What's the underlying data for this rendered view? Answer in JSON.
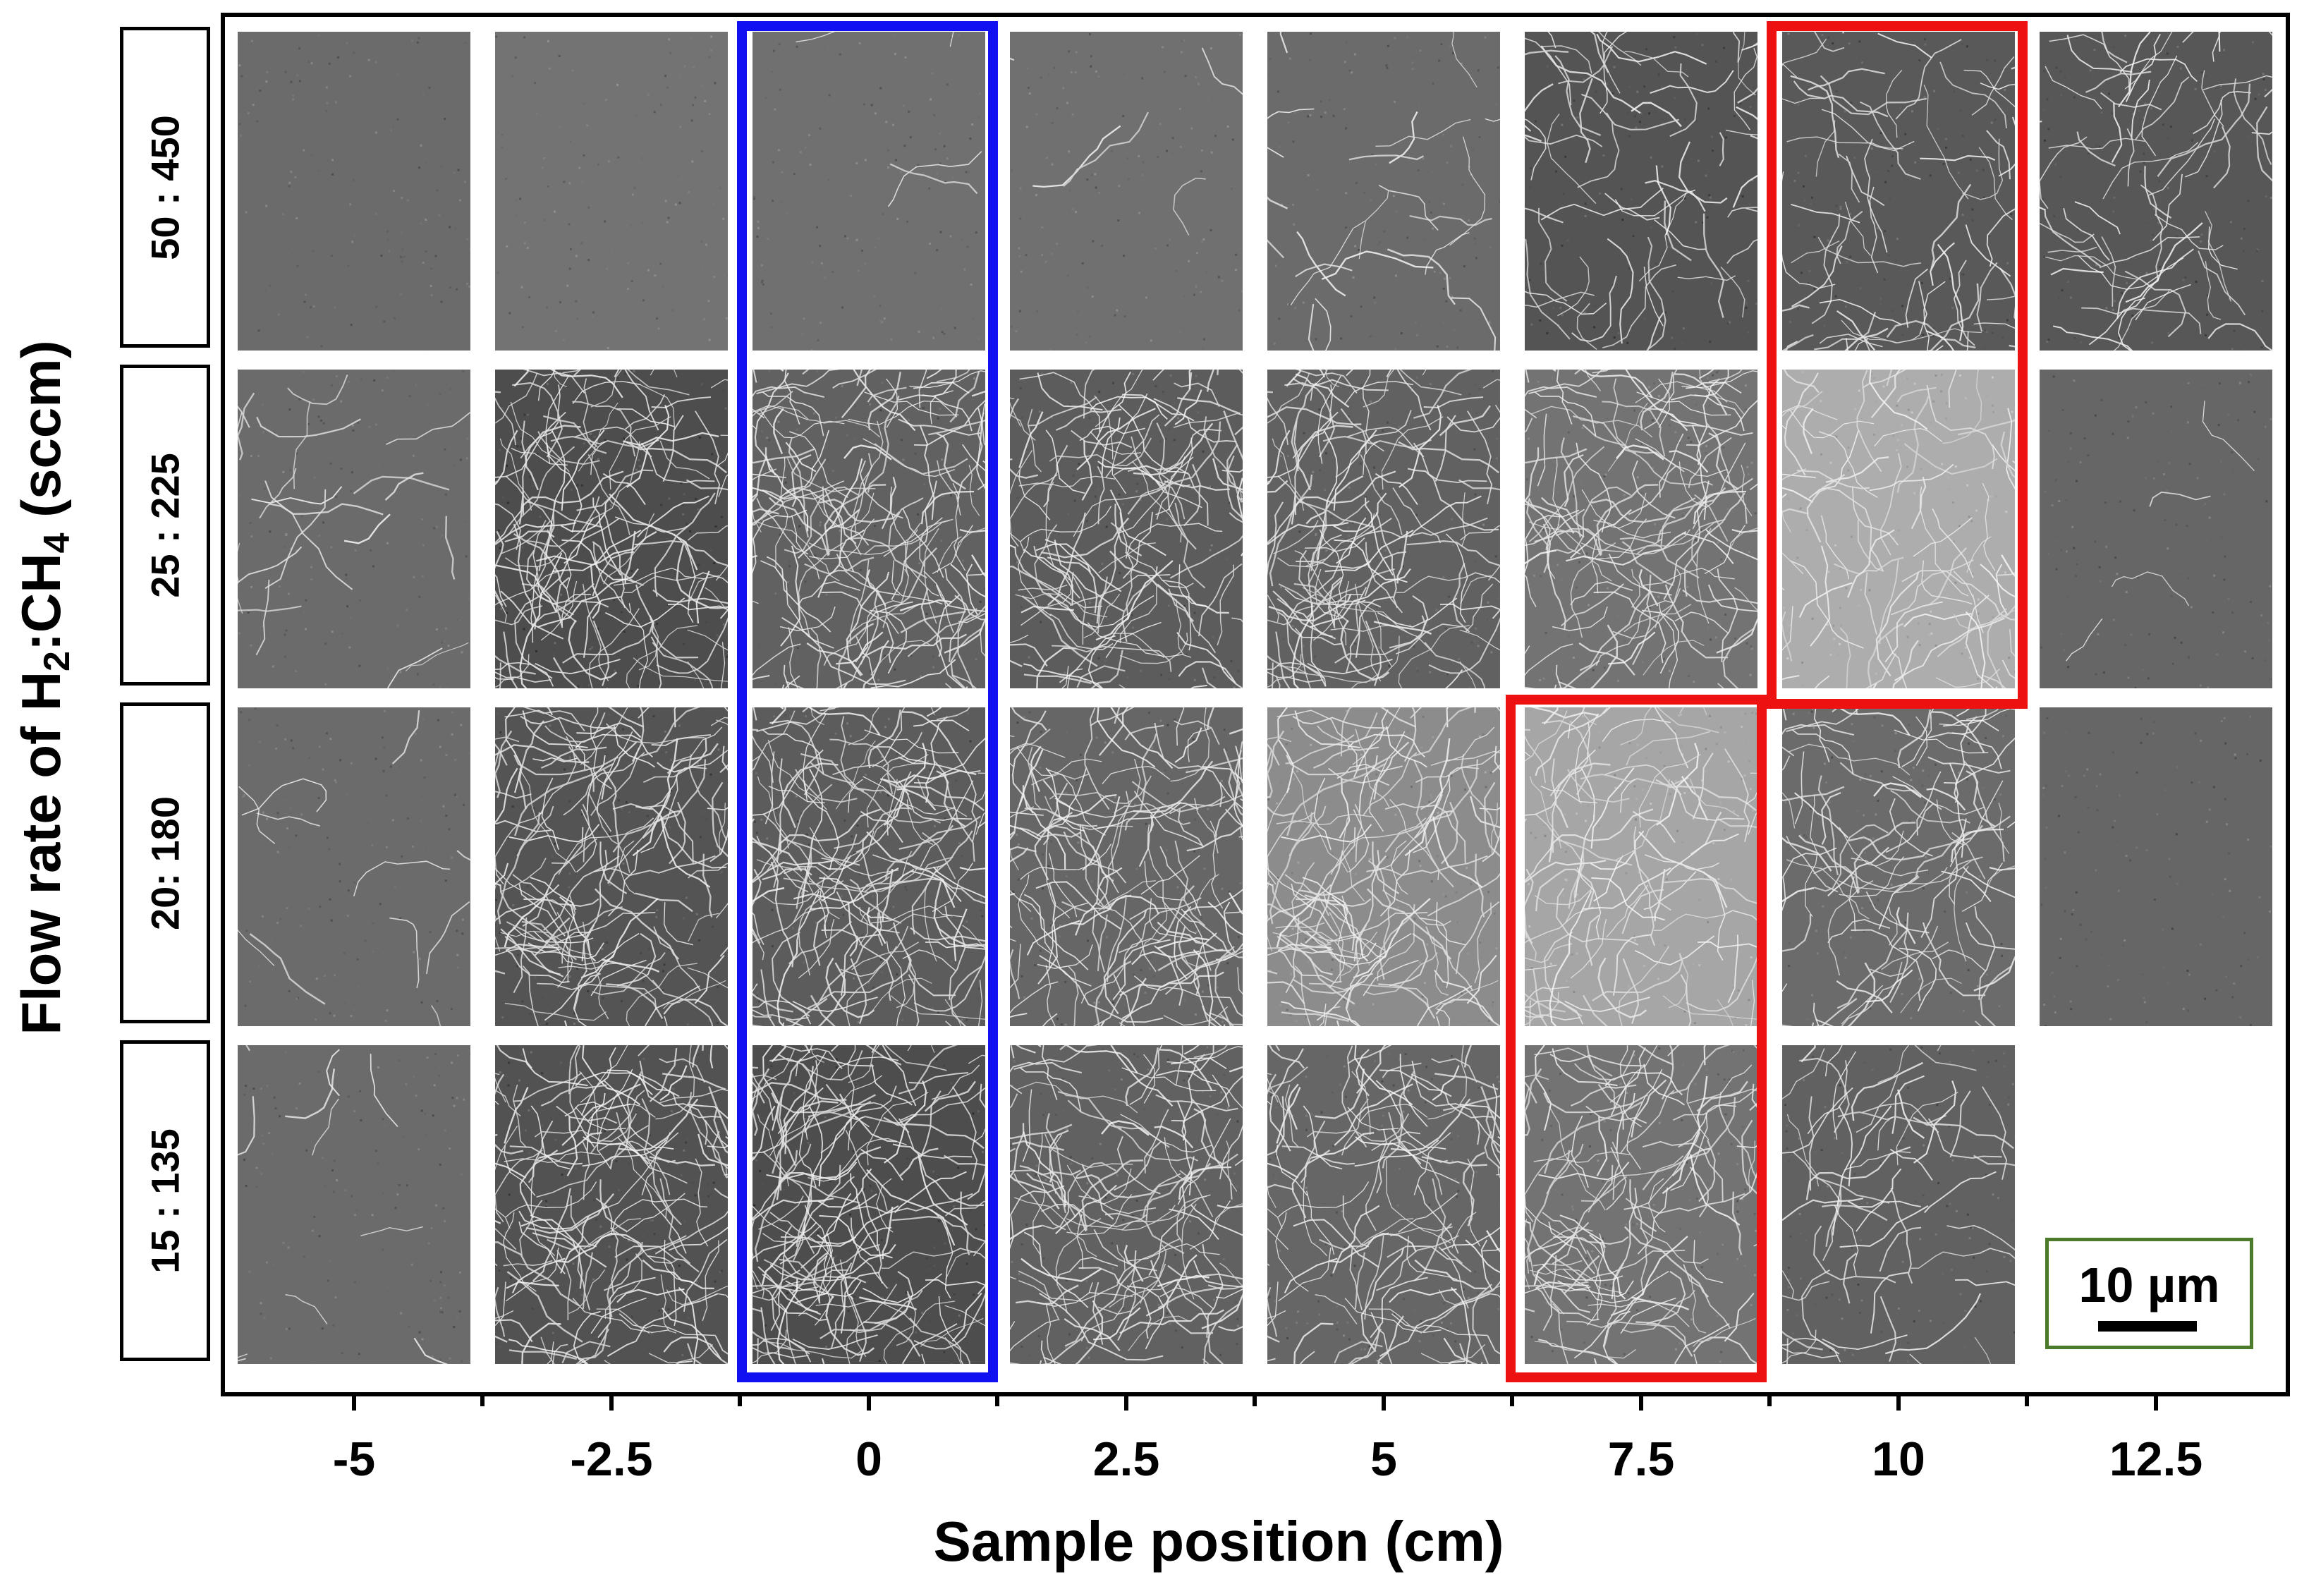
{
  "figure": {
    "x_axis": {
      "title": "Sample position (cm)",
      "ticks": [
        "-5",
        "-2.5",
        "0",
        "2.5",
        "5",
        "7.5",
        "10",
        "12.5"
      ]
    },
    "y_axis": {
      "title_prefix": "Flow rate of H",
      "h2_subscript": "2",
      "title_middle": ":CH",
      "ch4_subscript": "4",
      "title_suffix": " (sccm)",
      "row_labels": [
        "50 : 450",
        "25 : 225",
        "20: 180",
        "15 : 135"
      ]
    },
    "scale_bar": {
      "label": "10 µm"
    },
    "highlight_colors": {
      "blue": "#1010f0",
      "red": "#ee1111"
    },
    "tiles": [
      [
        {
          "brightness": 0.42,
          "fiber_density": 0.0
        },
        {
          "brightness": 0.45,
          "fiber_density": 0.0
        },
        {
          "brightness": 0.44,
          "fiber_density": 0.02
        },
        {
          "brightness": 0.44,
          "fiber_density": 0.03
        },
        {
          "brightness": 0.42,
          "fiber_density": 0.12
        },
        {
          "brightness": 0.33,
          "fiber_density": 0.35
        },
        {
          "brightness": 0.35,
          "fiber_density": 0.4
        },
        {
          "brightness": 0.34,
          "fiber_density": 0.35
        }
      ],
      [
        {
          "brightness": 0.42,
          "fiber_density": 0.12
        },
        {
          "brightness": 0.3,
          "fiber_density": 0.85
        },
        {
          "brightness": 0.38,
          "fiber_density": 0.95
        },
        {
          "brightness": 0.36,
          "fiber_density": 0.8
        },
        {
          "brightness": 0.38,
          "fiber_density": 0.8
        },
        {
          "brightness": 0.45,
          "fiber_density": 0.75
        },
        {
          "brightness": 0.68,
          "fiber_density": 0.5
        },
        {
          "brightness": 0.4,
          "fiber_density": 0.02
        }
      ],
      [
        {
          "brightness": 0.42,
          "fiber_density": 0.06
        },
        {
          "brightness": 0.33,
          "fiber_density": 0.8
        },
        {
          "brightness": 0.36,
          "fiber_density": 0.95
        },
        {
          "brightness": 0.4,
          "fiber_density": 0.9
        },
        {
          "brightness": 0.55,
          "fiber_density": 0.8
        },
        {
          "brightness": 0.65,
          "fiber_density": 0.6
        },
        {
          "brightness": 0.42,
          "fiber_density": 0.6
        },
        {
          "brightness": 0.4,
          "fiber_density": 0.0
        }
      ],
      [
        {
          "brightness": 0.42,
          "fiber_density": 0.06
        },
        {
          "brightness": 0.32,
          "fiber_density": 0.9
        },
        {
          "brightness": 0.3,
          "fiber_density": 0.95
        },
        {
          "brightness": 0.38,
          "fiber_density": 0.8
        },
        {
          "brightness": 0.4,
          "fiber_density": 0.75
        },
        {
          "brightness": 0.45,
          "fiber_density": 0.7
        },
        {
          "brightness": 0.38,
          "fiber_density": 0.35
        },
        null
      ]
    ]
  }
}
